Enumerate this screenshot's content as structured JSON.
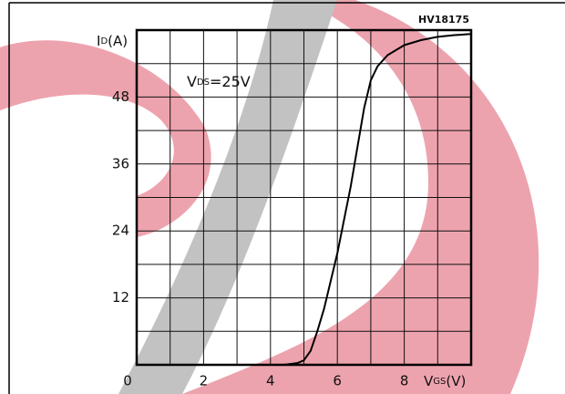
{
  "chart_data": {
    "type": "line",
    "code": "HV18175",
    "ylabel": {
      "main": "I",
      "sub": "D",
      "unit": "(A)"
    },
    "xlabel": {
      "main": "V",
      "sub": "GS",
      "unit": "(V)"
    },
    "annotation": {
      "main": "V",
      "sub": "DS",
      "rest": "=25V"
    },
    "x": [
      4.4,
      4.8,
      5.0,
      5.2,
      5.4,
      5.6,
      5.8,
      6.0,
      6.2,
      6.4,
      6.6,
      6.8,
      7.0,
      7.2,
      7.5,
      8.0,
      8.5,
      9.0,
      9.5,
      10.0
    ],
    "series": [
      {
        "color": "#000000",
        "values": [
          0,
          0.3,
          0.8,
          2.5,
          6,
          10,
          15,
          20,
          26,
          32,
          39,
          46,
          51,
          53.5,
          55.5,
          57.3,
          58.2,
          58.8,
          59.1,
          59.3
        ]
      }
    ],
    "xlim": [
      0,
      10
    ],
    "ylim": [
      0,
      60
    ],
    "xticks": [
      0,
      2,
      4,
      6,
      8
    ],
    "yticks": [
      12,
      24,
      36,
      48
    ],
    "xgrid": [
      1,
      2,
      3,
      4,
      5,
      6,
      7,
      8,
      9
    ],
    "ygrid": [
      6,
      12,
      18,
      24,
      30,
      36,
      42,
      48,
      54
    ]
  }
}
